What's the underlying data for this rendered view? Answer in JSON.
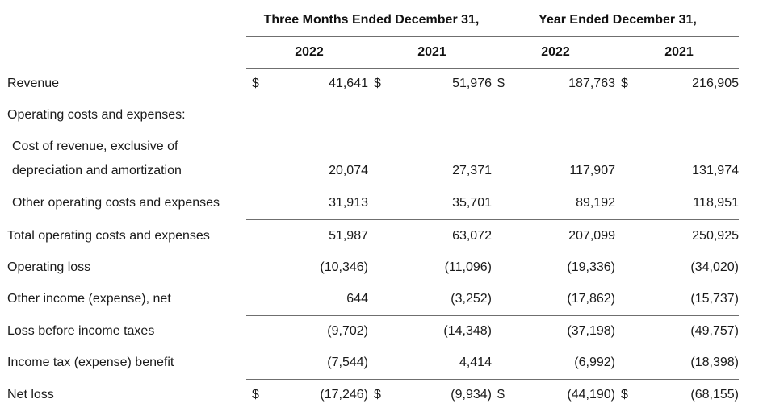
{
  "header": {
    "group1": "Three Months Ended December 31,",
    "group2": "Year Ended December 31,",
    "years": [
      "2022",
      "2021",
      "2022",
      "2021"
    ]
  },
  "currency_symbol": "$",
  "rows": [
    {
      "label": "Revenue",
      "values": [
        "41,641",
        "51,976",
        "187,763",
        "216,905"
      ]
    },
    {
      "label": "Operating costs and expenses:"
    },
    {
      "label": "Cost of revenue, exclusive of"
    },
    {
      "label": "depreciation and amortization",
      "values": [
        "20,074",
        "27,371",
        "117,907",
        "131,974"
      ]
    },
    {
      "label": "Other operating costs and expenses",
      "values": [
        "31,913",
        "35,701",
        "89,192",
        "118,951"
      ]
    },
    {
      "label": "Total operating costs and expenses",
      "values": [
        "51,987",
        "63,072",
        "207,099",
        "250,925"
      ]
    },
    {
      "label": "Operating loss",
      "values": [
        "(10,346)",
        "(11,096)",
        "(19,336)",
        "(34,020)"
      ]
    },
    {
      "label": "Other income (expense), net",
      "values": [
        "644",
        "(3,252)",
        "(17,862)",
        "(15,737)"
      ]
    },
    {
      "label": "Loss before income taxes",
      "values": [
        "(9,702)",
        "(14,348)",
        "(37,198)",
        "(49,757)"
      ]
    },
    {
      "label": "Income tax (expense) benefit",
      "values": [
        "(7,544)",
        "4,414",
        "(6,992)",
        "(18,398)"
      ]
    },
    {
      "label": "Net loss",
      "values": [
        "(17,246)",
        "(9,934)",
        "(44,190)",
        "(68,155)"
      ]
    }
  ]
}
